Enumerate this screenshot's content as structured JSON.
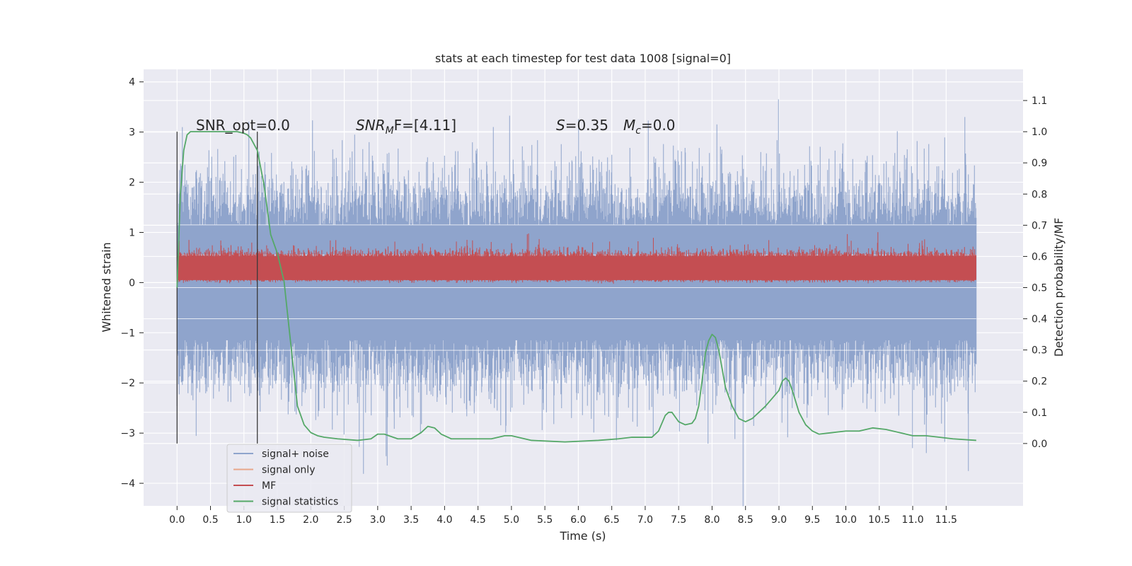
{
  "chart_data": {
    "type": "line",
    "title": "stats at each timestep for test data 1008 [signal=0]",
    "xlabel": "Time (s)",
    "ylabel": "Whitened strain",
    "ylabel_right": "Detection probability/MF",
    "xlim": [
      -0.5,
      12.65
    ],
    "ylim": [
      -4.45,
      4.25
    ],
    "ylim_right": [
      -0.2,
      1.2
    ],
    "x_ticks": [
      "0.0",
      "0.5",
      "1.0",
      "1.5",
      "2.0",
      "2.5",
      "3.0",
      "3.5",
      "4.0",
      "4.5",
      "5.0",
      "5.5",
      "6.0",
      "6.5",
      "7.0",
      "7.5",
      "8.0",
      "8.5",
      "9.0",
      "9.5",
      "10.0",
      "10.5",
      "11.0",
      "11.5"
    ],
    "y_ticks": [
      "−4",
      "−3",
      "−2",
      "−1",
      "0",
      "1",
      "2",
      "3",
      "4"
    ],
    "y_ticks_right": [
      "0.0",
      "0.1",
      "0.2",
      "0.3",
      "0.4",
      "0.5",
      "0.6",
      "0.7",
      "0.8",
      "0.9",
      "1.0",
      "1.1"
    ],
    "grid": true,
    "legend_position": "bottom-left",
    "legend": [
      {
        "label": "signal+ noise",
        "color": "#8fa4cc"
      },
      {
        "label": "signal only",
        "color": "#e8a78a"
      },
      {
        "label": "MF",
        "color": "#c44e52"
      },
      {
        "label": "signal statistics",
        "color": "#55a868"
      }
    ],
    "annotations": {
      "snr_opt": "SNR_opt=0.0",
      "snr_mf_sym": "SNR",
      "snr_mf_sub": "M",
      "snr_mf_rest": "F=[4.11]",
      "s_sym": "S",
      "s_rest": "=0.35",
      "mc_sym": "M",
      "mc_sub": "c",
      "mc_rest": "=0.0"
    },
    "vertical_markers_x": [
      0.0,
      1.2
    ],
    "series": [
      {
        "name": "signal statistics",
        "axis": "right",
        "color": "#55a868",
        "x": [
          0.0,
          0.05,
          0.1,
          0.15,
          0.2,
          0.3,
          0.5,
          0.7,
          0.9,
          1.0,
          1.05,
          1.1,
          1.2,
          1.3,
          1.4,
          1.5,
          1.6,
          1.7,
          1.8,
          1.9,
          2.0,
          2.1,
          2.2,
          2.4,
          2.7,
          2.9,
          3.0,
          3.1,
          3.3,
          3.5,
          3.65,
          3.75,
          3.85,
          3.95,
          4.1,
          4.4,
          4.7,
          4.9,
          5.0,
          5.3,
          5.8,
          6.3,
          6.6,
          6.8,
          7.0,
          7.1,
          7.2,
          7.3,
          7.35,
          7.4,
          7.5,
          7.6,
          7.7,
          7.75,
          7.8,
          7.85,
          7.9,
          7.95,
          8.0,
          8.05,
          8.1,
          8.15,
          8.2,
          8.3,
          8.4,
          8.5,
          8.6,
          8.7,
          8.8,
          9.0,
          9.05,
          9.1,
          9.15,
          9.2,
          9.3,
          9.4,
          9.5,
          9.6,
          9.8,
          10.0,
          10.2,
          10.4,
          10.6,
          10.8,
          11.0,
          11.2,
          11.4,
          11.6,
          11.95
        ],
        "y": [
          0.5,
          0.8,
          0.94,
          0.99,
          1.0,
          1.0,
          1.0,
          1.0,
          1.0,
          0.995,
          0.99,
          0.98,
          0.94,
          0.83,
          0.67,
          0.61,
          0.52,
          0.32,
          0.12,
          0.06,
          0.035,
          0.025,
          0.02,
          0.015,
          0.01,
          0.015,
          0.03,
          0.03,
          0.015,
          0.015,
          0.035,
          0.055,
          0.05,
          0.03,
          0.015,
          0.015,
          0.015,
          0.025,
          0.025,
          0.01,
          0.005,
          0.01,
          0.015,
          0.02,
          0.02,
          0.02,
          0.04,
          0.09,
          0.1,
          0.1,
          0.07,
          0.06,
          0.065,
          0.08,
          0.12,
          0.2,
          0.29,
          0.33,
          0.35,
          0.34,
          0.3,
          0.24,
          0.18,
          0.12,
          0.08,
          0.07,
          0.08,
          0.1,
          0.12,
          0.17,
          0.2,
          0.21,
          0.2,
          0.17,
          0.1,
          0.06,
          0.04,
          0.03,
          0.035,
          0.04,
          0.04,
          0.05,
          0.045,
          0.035,
          0.025,
          0.025,
          0.02,
          0.015,
          0.01
        ]
      }
    ]
  }
}
